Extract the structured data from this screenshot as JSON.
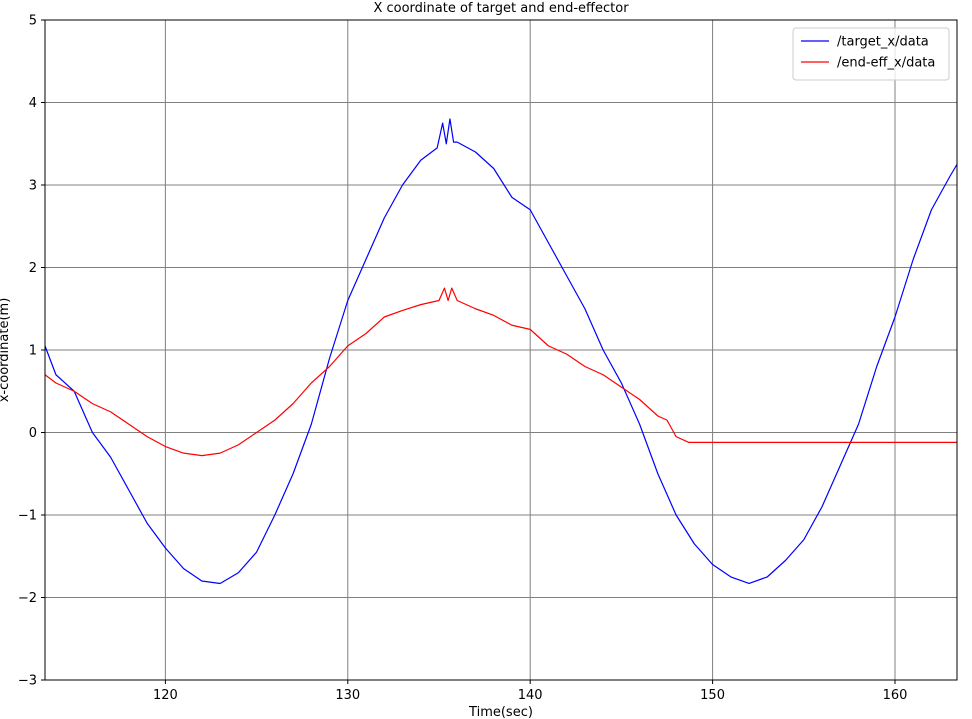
{
  "chart_data": {
    "type": "line",
    "title": "X coordinate of target and end-effector",
    "xlabel": "Time(sec)",
    "ylabel": "x-coordinate(m)",
    "xlim": [
      113.4,
      163.4
    ],
    "ylim": [
      -3,
      5
    ],
    "xticks": [
      120,
      130,
      140,
      150,
      160
    ],
    "yticks": [
      {
        "value": -3,
        "label": "−3"
      },
      {
        "value": -2,
        "label": "−2"
      },
      {
        "value": -1,
        "label": "−1"
      },
      0,
      1,
      2,
      3,
      4,
      5
    ],
    "grid": true,
    "legend": "upper right",
    "series": [
      {
        "name": "/target_x/data",
        "color": "#0000ff",
        "x": [
          113.4,
          114,
          115,
          116,
          117,
          118,
          119,
          120,
          121,
          122,
          123,
          124,
          125,
          126,
          127,
          128,
          129,
          130,
          131,
          132,
          133,
          134,
          134.9,
          135.2,
          135.4,
          135.6,
          135.8,
          136,
          137,
          138,
          139,
          140,
          141,
          142,
          143,
          144,
          145,
          146,
          147,
          148,
          149,
          150,
          151,
          152,
          153,
          154,
          155,
          156,
          157,
          158,
          159,
          160,
          161,
          162,
          163,
          163.4
        ],
        "values": [
          1.05,
          0.7,
          0.5,
          0.0,
          -0.3,
          -0.7,
          -1.1,
          -1.4,
          -1.65,
          -1.8,
          -1.83,
          -1.7,
          -1.45,
          -1.0,
          -0.5,
          0.1,
          0.9,
          1.6,
          2.1,
          2.6,
          3.0,
          3.3,
          3.45,
          3.75,
          3.5,
          3.8,
          3.52,
          3.52,
          3.4,
          3.2,
          2.85,
          2.7,
          2.3,
          1.9,
          1.5,
          1.0,
          0.6,
          0.1,
          -0.5,
          -1.0,
          -1.35,
          -1.6,
          -1.75,
          -1.83,
          -1.75,
          -1.55,
          -1.3,
          -0.9,
          -0.4,
          0.1,
          0.8,
          1.4,
          2.1,
          2.7,
          3.1,
          3.25
        ]
      },
      {
        "name": "/end-eff_x/data",
        "color": "#ff0000",
        "x": [
          113.4,
          114,
          115,
          116,
          117,
          118,
          119,
          120,
          121,
          122,
          123,
          124,
          125,
          126,
          127,
          128,
          129,
          130,
          131,
          132,
          133,
          134,
          135,
          135.3,
          135.5,
          135.7,
          136,
          137,
          138,
          139,
          140,
          141,
          142,
          143,
          144,
          145,
          146,
          147,
          147.5,
          148,
          148.7,
          163.4
        ],
        "values": [
          0.7,
          0.6,
          0.5,
          0.35,
          0.25,
          0.1,
          -0.05,
          -0.17,
          -0.25,
          -0.28,
          -0.25,
          -0.15,
          0.0,
          0.15,
          0.35,
          0.6,
          0.8,
          1.05,
          1.2,
          1.4,
          1.48,
          1.55,
          1.6,
          1.75,
          1.6,
          1.75,
          1.6,
          1.5,
          1.42,
          1.3,
          1.25,
          1.05,
          0.95,
          0.8,
          0.7,
          0.55,
          0.4,
          0.2,
          0.15,
          -0.05,
          -0.12,
          -0.12
        ]
      }
    ]
  }
}
